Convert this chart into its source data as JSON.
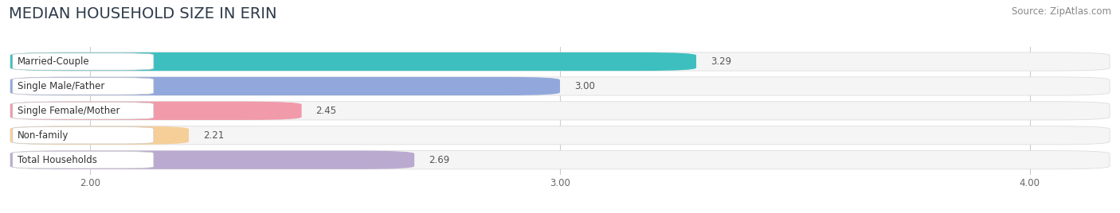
{
  "title": "MEDIAN HOUSEHOLD SIZE IN ERIN",
  "source": "Source: ZipAtlas.com",
  "categories": [
    "Married-Couple",
    "Single Male/Father",
    "Single Female/Mother",
    "Non-family",
    "Total Households"
  ],
  "values": [
    3.29,
    3.0,
    2.45,
    2.21,
    2.69
  ],
  "bar_colors": [
    "#3dbfbf",
    "#92a8dc",
    "#f09aaa",
    "#f5ce98",
    "#baaad0"
  ],
  "bar_edge_colors": [
    "#2aafaf",
    "#7a90c4",
    "#d88090",
    "#e0b878",
    "#a090c0"
  ],
  "xlim": [
    1.82,
    4.18
  ],
  "xstart": 1.82,
  "xticks": [
    2.0,
    3.0,
    4.0
  ],
  "xtick_labels": [
    "2.00",
    "3.00",
    "4.00"
  ],
  "background_color": "#ffffff",
  "bar_bg_color": "#f5f5f5",
  "bar_bg_edge_color": "#dddddd",
  "title_fontsize": 14,
  "label_fontsize": 8.5,
  "value_fontsize": 8.5,
  "source_fontsize": 8.5,
  "title_color": "#2d3a4a",
  "label_color": "#333333",
  "value_color": "#555555",
  "grid_color": "#cccccc"
}
